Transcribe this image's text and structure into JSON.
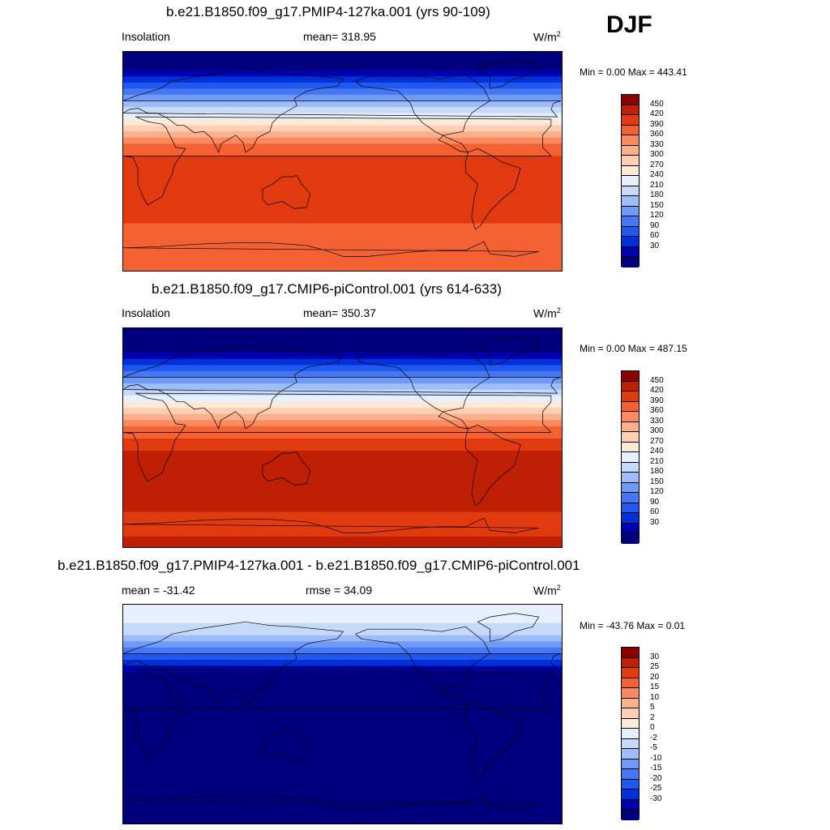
{
  "season": "DJF",
  "palettes": {
    "abs": [
      "#00007f",
      "#0000b0",
      "#0030d8",
      "#2058f0",
      "#4678f5",
      "#6f9bf7",
      "#9dbcf9",
      "#c5daf9",
      "#e5f0fc",
      "#fde9d6",
      "#fccfb4",
      "#fbb08c",
      "#fa8a60",
      "#f46233",
      "#e23a10",
      "#bf2004",
      "#8b0000"
    ],
    "diff": [
      "#00007f",
      "#0000b0",
      "#0030d8",
      "#2058f0",
      "#4678f5",
      "#6f9bf7",
      "#9dbcf9",
      "#c5daf9",
      "#e5f0fc",
      "#fde9d6",
      "#fccfb4",
      "#fbb08c",
      "#fa8a60",
      "#f46233",
      "#e23a10",
      "#bf2004",
      "#8b0000"
    ]
  },
  "coast_color": "#000000",
  "panels": [
    {
      "title": "b.e21.B1850.f09_g17.PMIP4-127ka.001 (yrs 90-109)",
      "left_label": "Insolation",
      "center_label": "mean= 318.95",
      "units": "W/m",
      "units_sup": "2",
      "minmax": "Min =   0.00 Max = 443.41",
      "colorbar_labels": [
        "450",
        "420",
        "390",
        "360",
        "330",
        "300",
        "270",
        "240",
        "210",
        "180",
        "150",
        "120",
        "90",
        "60",
        "30"
      ]
    },
    {
      "title": "b.e21.B1850.f09_g17.CMIP6-piControl.001 (yrs 614-633)",
      "left_label": "Insolation",
      "center_label": "mean= 350.37",
      "units": "W/m",
      "units_sup": "2",
      "minmax": "Min =   0.00 Max = 487.15",
      "colorbar_labels": [
        "450",
        "420",
        "390",
        "360",
        "330",
        "300",
        "270",
        "240",
        "210",
        "180",
        "150",
        "120",
        "90",
        "60",
        "30"
      ]
    },
    {
      "title": "b.e21.B1850.f09_g17.PMIP4-127ka.001 - b.e21.B1850.f09_g17.CMIP6-piControl.001",
      "left_label": "mean = -31.42",
      "center_label": "rmse =  34.09",
      "units": "W/m",
      "units_sup": "2",
      "minmax": "Min = -43.76 Max =   0.01",
      "colorbar_labels": [
        "30",
        "25",
        "20",
        "15",
        "10",
        "5",
        "2",
        "0",
        "-2",
        "-5",
        "-10",
        "-15",
        "-20",
        "-25",
        "-30"
      ]
    }
  ],
  "chart_data": [
    {
      "type": "heatmap",
      "title": "b.e21.B1850.f09_g17.PMIP4-127ka.001 (yrs 90-109)",
      "variable": "Insolation",
      "units": "W/m2",
      "season": "DJF",
      "mean": 318.95,
      "min": 0.0,
      "max": 443.41,
      "colorbar_levels": [
        30,
        60,
        90,
        120,
        150,
        180,
        210,
        240,
        270,
        300,
        330,
        360,
        390,
        420,
        450
      ],
      "zonal_bands": [
        {
          "lat": [
            90,
            75
          ],
          "value": 0
        },
        {
          "lat": [
            75,
            70
          ],
          "value": 45
        },
        {
          "lat": [
            70,
            65
          ],
          "value": 75
        },
        {
          "lat": [
            65,
            60
          ],
          "value": 105
        },
        {
          "lat": [
            60,
            55
          ],
          "value": 135
        },
        {
          "lat": [
            55,
            50
          ],
          "value": 165
        },
        {
          "lat": [
            50,
            45
          ],
          "value": 195
        },
        {
          "lat": [
            45,
            40
          ],
          "value": 225
        },
        {
          "lat": [
            40,
            35
          ],
          "value": 255
        },
        {
          "lat": [
            35,
            30
          ],
          "value": 285
        },
        {
          "lat": [
            30,
            25
          ],
          "value": 315
        },
        {
          "lat": [
            25,
            20
          ],
          "value": 345
        },
        {
          "lat": [
            20,
            15
          ],
          "value": 375
        },
        {
          "lat": [
            15,
            5
          ],
          "value": 405
        },
        {
          "lat": [
            5,
            -50
          ],
          "value": 425
        },
        {
          "lat": [
            -50,
            -90
          ],
          "value": 410
        }
      ]
    },
    {
      "type": "heatmap",
      "title": "b.e21.B1850.f09_g17.CMIP6-piControl.001 (yrs 614-633)",
      "variable": "Insolation",
      "units": "W/m2",
      "season": "DJF",
      "mean": 350.37,
      "min": 0.0,
      "max": 487.15,
      "colorbar_levels": [
        30,
        60,
        90,
        120,
        150,
        180,
        210,
        240,
        270,
        300,
        330,
        360,
        390,
        420,
        450
      ],
      "zonal_bands": [
        {
          "lat": [
            90,
            70
          ],
          "value": 0
        },
        {
          "lat": [
            70,
            65
          ],
          "value": 45
        },
        {
          "lat": [
            65,
            60
          ],
          "value": 75
        },
        {
          "lat": [
            60,
            55
          ],
          "value": 105
        },
        {
          "lat": [
            55,
            50
          ],
          "value": 135
        },
        {
          "lat": [
            50,
            45
          ],
          "value": 165
        },
        {
          "lat": [
            45,
            40
          ],
          "value": 195
        },
        {
          "lat": [
            40,
            35
          ],
          "value": 225
        },
        {
          "lat": [
            35,
            30
          ],
          "value": 255
        },
        {
          "lat": [
            30,
            25
          ],
          "value": 285
        },
        {
          "lat": [
            25,
            20
          ],
          "value": 315
        },
        {
          "lat": [
            20,
            15
          ],
          "value": 345
        },
        {
          "lat": [
            15,
            10
          ],
          "value": 375
        },
        {
          "lat": [
            10,
            0
          ],
          "value": 405
        },
        {
          "lat": [
            0,
            -10
          ],
          "value": 435
        },
        {
          "lat": [
            -10,
            -60
          ],
          "value": 465
        },
        {
          "lat": [
            -60,
            -80
          ],
          "value": 435
        },
        {
          "lat": [
            -80,
            -90
          ],
          "value": 465
        }
      ]
    },
    {
      "type": "heatmap",
      "title": "b.e21.B1850.f09_g17.PMIP4-127ka.001 - b.e21.B1850.f09_g17.CMIP6-piControl.001",
      "units": "W/m2",
      "season": "DJF",
      "mean": -31.42,
      "rmse": 34.09,
      "min": -43.76,
      "max": 0.01,
      "colorbar_levels": [
        -30,
        -25,
        -20,
        -15,
        -10,
        -5,
        -2,
        0,
        2,
        5,
        10,
        15,
        20,
        25,
        30
      ],
      "zonal_bands": [
        {
          "lat": [
            90,
            75
          ],
          "value": 1
        },
        {
          "lat": [
            75,
            65
          ],
          "value": -1
        },
        {
          "lat": [
            65,
            60
          ],
          "value": -3
        },
        {
          "lat": [
            60,
            55
          ],
          "value": -7
        },
        {
          "lat": [
            55,
            50
          ],
          "value": -12
        },
        {
          "lat": [
            50,
            45
          ],
          "value": -17
        },
        {
          "lat": [
            45,
            40
          ],
          "value": -22
        },
        {
          "lat": [
            40,
            35
          ],
          "value": -27
        },
        {
          "lat": [
            35,
            -90
          ],
          "value": -40
        }
      ]
    }
  ]
}
